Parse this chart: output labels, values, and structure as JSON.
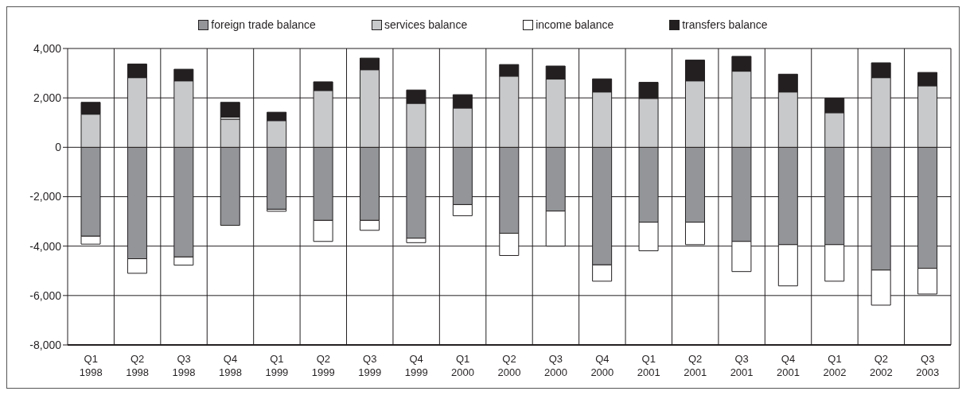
{
  "chart_data": {
    "type": "bar",
    "stacked": true,
    "categories": [
      "Q1 1998",
      "Q2 1998",
      "Q3 1998",
      "Q4 1998",
      "Q1 1999",
      "Q2 1999",
      "Q3 1999",
      "Q4 1999",
      "Q1 2000",
      "Q2 2000",
      "Q3 2000",
      "Q4 2000",
      "Q1 2001",
      "Q2 2001",
      "Q3 2001",
      "Q4 2001",
      "Q1 2002",
      "Q2 2002",
      "Q3 2003"
    ],
    "series": [
      {
        "name": "foreign trade balance",
        "color": "#939598",
        "values": [
          -3600,
          -4510,
          -4440,
          -3160,
          -2510,
          -2960,
          -2960,
          -3680,
          -2320,
          -3480,
          -2580,
          -4760,
          -3030,
          -3030,
          -3810,
          -3940,
          -3940,
          -4970,
          -4900
        ]
      },
      {
        "name": "services balance",
        "color": "#c8c9cb",
        "values": [
          1340,
          2820,
          2690,
          1140,
          1080,
          2300,
          3140,
          1780,
          1590,
          2880,
          2760,
          2240,
          1980,
          2690,
          3080,
          2240,
          1400,
          2820,
          2490
        ]
      },
      {
        "name": "income balance",
        "color": "#ffffff",
        "values": [
          -320,
          -590,
          -330,
          80,
          -80,
          -850,
          -400,
          -180,
          -450,
          -900,
          -1420,
          -660,
          -1160,
          -910,
          -1220,
          -1670,
          -1480,
          -1420,
          -1040
        ]
      },
      {
        "name": "transfers balance",
        "color": "#231f20",
        "values": [
          480,
          550,
          470,
          600,
          340,
          350,
          470,
          540,
          540,
          470,
          530,
          530,
          650,
          840,
          600,
          720,
          590,
          600,
          540
        ]
      }
    ],
    "ylim": [
      -8000,
      4000
    ],
    "yticks": [
      {
        "value": -8000,
        "label": "-8,000"
      },
      {
        "value": -6000,
        "label": "-6,000"
      },
      {
        "value": -4000,
        "label": "-4,000"
      },
      {
        "value": -2000,
        "label": "-2,000"
      },
      {
        "value": 0,
        "label": "0"
      },
      {
        "value": 2000,
        "label": "2,000"
      },
      {
        "value": 4000,
        "label": "4,000"
      }
    ],
    "grid": true,
    "legend": "top"
  }
}
